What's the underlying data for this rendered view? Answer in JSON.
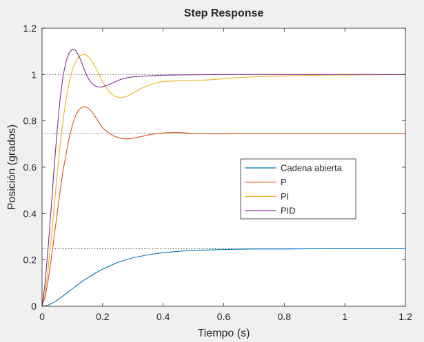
{
  "chart_data": {
    "type": "line",
    "title": "Step Response",
    "xlabel": "Tiempo (s)",
    "ylabel": "Posición (grados)",
    "xlim": [
      0,
      1.2
    ],
    "ylim": [
      0,
      1.2
    ],
    "xticks": [
      0,
      0.2,
      0.4,
      0.6,
      0.8,
      1,
      1.2
    ],
    "xtick_labels": [
      "0",
      "0.2",
      "0.4",
      "0.6",
      "0.8",
      "1",
      "1.2"
    ],
    "yticks": [
      0,
      0.2,
      0.4,
      0.6,
      0.8,
      1,
      1.2
    ],
    "ytick_labels": [
      "0",
      "0.2",
      "0.4",
      "0.6",
      "0.8",
      "1",
      "1.2"
    ],
    "grid": false,
    "legend_position": "center-right",
    "steady_state_reference_lines": [
      0.248,
      0.745,
      1.0
    ],
    "series": [
      {
        "name": "Cadena abierta",
        "color": "#0072bd",
        "x": [
          0,
          0.01,
          0.02,
          0.03,
          0.04,
          0.05,
          0.06,
          0.08,
          0.1,
          0.12,
          0.14,
          0.16,
          0.18,
          0.2,
          0.22,
          0.25,
          0.28,
          0.3,
          0.35,
          0.4,
          0.45,
          0.5,
          0.55,
          0.6,
          0.7,
          0.8,
          0.9,
          1.0,
          1.1,
          1.2
        ],
        "y": [
          0,
          0.001,
          0.005,
          0.011,
          0.018,
          0.026,
          0.035,
          0.055,
          0.075,
          0.095,
          0.114,
          0.13,
          0.146,
          0.16,
          0.172,
          0.189,
          0.202,
          0.209,
          0.222,
          0.231,
          0.237,
          0.241,
          0.243,
          0.245,
          0.247,
          0.247,
          0.248,
          0.248,
          0.248,
          0.248
        ]
      },
      {
        "name": "P",
        "color": "#d95319",
        "x": [
          0,
          0.01,
          0.02,
          0.03,
          0.04,
          0.05,
          0.06,
          0.07,
          0.08,
          0.09,
          0.1,
          0.11,
          0.12,
          0.13,
          0.14,
          0.15,
          0.16,
          0.17,
          0.18,
          0.19,
          0.2,
          0.22,
          0.24,
          0.26,
          0.28,
          0.3,
          0.33,
          0.36,
          0.4,
          0.43,
          0.46,
          0.5,
          0.55,
          0.6,
          0.7,
          0.8,
          0.9,
          1.0,
          1.1,
          1.2
        ],
        "y": [
          0,
          0.04,
          0.11,
          0.2,
          0.3,
          0.4,
          0.5,
          0.59,
          0.66,
          0.73,
          0.78,
          0.82,
          0.845,
          0.858,
          0.862,
          0.857,
          0.846,
          0.83,
          0.81,
          0.79,
          0.77,
          0.748,
          0.733,
          0.725,
          0.722,
          0.725,
          0.733,
          0.742,
          0.748,
          0.75,
          0.749,
          0.746,
          0.744,
          0.744,
          0.745,
          0.745,
          0.745,
          0.745,
          0.745,
          0.745
        ]
      },
      {
        "name": "PI",
        "color": "#edb120",
        "x": [
          0,
          0.01,
          0.02,
          0.03,
          0.04,
          0.05,
          0.06,
          0.07,
          0.08,
          0.09,
          0.1,
          0.11,
          0.12,
          0.13,
          0.14,
          0.15,
          0.16,
          0.17,
          0.18,
          0.19,
          0.2,
          0.22,
          0.24,
          0.26,
          0.28,
          0.3,
          0.32,
          0.34,
          0.37,
          0.4,
          0.45,
          0.5,
          0.55,
          0.6,
          0.65,
          0.7,
          0.8,
          0.9,
          1.0,
          1.1,
          1.2
        ],
        "y": [
          0,
          0.06,
          0.16,
          0.29,
          0.43,
          0.57,
          0.7,
          0.81,
          0.9,
          0.97,
          1.02,
          1.055,
          1.075,
          1.085,
          1.087,
          1.08,
          1.066,
          1.046,
          1.022,
          0.995,
          0.968,
          0.928,
          0.906,
          0.9,
          0.906,
          0.92,
          0.935,
          0.948,
          0.962,
          0.97,
          0.973,
          0.974,
          0.977,
          0.982,
          0.987,
          0.99,
          0.994,
          0.997,
          0.998,
          0.999,
          1.0
        ]
      },
      {
        "name": "PID",
        "color": "#7e2f8e",
        "x": [
          0,
          0.01,
          0.02,
          0.03,
          0.04,
          0.05,
          0.06,
          0.07,
          0.08,
          0.09,
          0.1,
          0.11,
          0.12,
          0.13,
          0.14,
          0.15,
          0.16,
          0.17,
          0.18,
          0.19,
          0.2,
          0.22,
          0.24,
          0.26,
          0.28,
          0.3,
          0.33,
          0.36,
          0.4,
          0.45,
          0.5,
          0.6,
          0.7,
          0.8,
          0.9,
          1.0,
          1.1,
          1.2
        ],
        "y": [
          0,
          0.1,
          0.25,
          0.42,
          0.6,
          0.76,
          0.9,
          1.0,
          1.06,
          1.095,
          1.11,
          1.105,
          1.085,
          1.055,
          1.02,
          0.99,
          0.968,
          0.955,
          0.948,
          0.946,
          0.947,
          0.956,
          0.968,
          0.979,
          0.986,
          0.99,
          0.993,
          0.995,
          0.997,
          0.998,
          0.999,
          1.0,
          1.0,
          1.0,
          1.0,
          1.0,
          1.0,
          1.0
        ]
      }
    ]
  }
}
